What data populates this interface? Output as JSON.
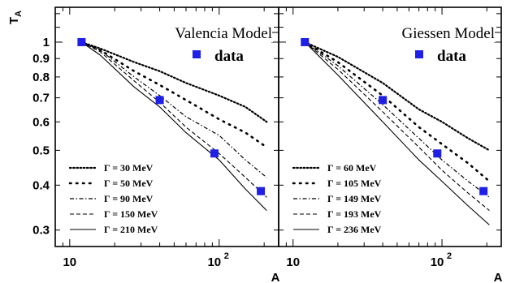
{
  "chart_data": [
    {
      "type": "line",
      "title": "Valencia Model",
      "xlabel": "A",
      "ylabel": "T_A",
      "x_scale": "log",
      "y_scale": "log",
      "xlim": [
        8,
        250
      ],
      "ylim": [
        0.27,
        1.25
      ],
      "x_ticks": [
        {
          "v": 10,
          "label": "10"
        },
        {
          "v": 100,
          "label": "10",
          "sup": "2"
        }
      ],
      "y_ticks": [
        {
          "v": 0.3,
          "label": "0.3"
        },
        {
          "v": 0.4,
          "label": "0.4"
        },
        {
          "v": 0.5,
          "label": "0.5"
        },
        {
          "v": 0.6,
          "label": "0.6"
        },
        {
          "v": 0.7,
          "label": "0.7"
        },
        {
          "v": 0.8,
          "label": "0.8"
        },
        {
          "v": 0.9,
          "label": "0.9"
        },
        {
          "v": 1,
          "label": "1"
        }
      ],
      "legend_data_label": "data",
      "series": [
        {
          "name": "Γ = 30 MeV",
          "style": "dotted-small",
          "points": [
            [
              12,
              1.0
            ],
            [
              16,
              0.96
            ],
            [
              27,
              0.88
            ],
            [
              40,
              0.83
            ],
            [
              60,
              0.77
            ],
            [
              100,
              0.71
            ],
            [
              150,
              0.66
            ],
            [
              208,
              0.6
            ]
          ]
        },
        {
          "name": "Γ = 50 MeV",
          "style": "dotted-large",
          "points": [
            [
              12,
              1.0
            ],
            [
              16,
              0.95
            ],
            [
              27,
              0.83
            ],
            [
              40,
              0.76
            ],
            [
              60,
              0.69
            ],
            [
              100,
              0.61
            ],
            [
              150,
              0.56
            ],
            [
              208,
              0.51
            ]
          ]
        },
        {
          "name": "Γ = 90 MeV",
          "style": "dashdot",
          "points": [
            [
              12,
              1.0
            ],
            [
              16,
              0.95
            ],
            [
              27,
              0.8
            ],
            [
              40,
              0.71
            ],
            [
              60,
              0.62
            ],
            [
              100,
              0.55
            ],
            [
              150,
              0.47
            ],
            [
              208,
              0.42
            ]
          ]
        },
        {
          "name": "Γ = 150 MeV",
          "style": "dashed",
          "points": [
            [
              12,
              1.0
            ],
            [
              16,
              0.94
            ],
            [
              27,
              0.78
            ],
            [
              40,
              0.68
            ],
            [
              60,
              0.58
            ],
            [
              100,
              0.49
            ],
            [
              150,
              0.42
            ],
            [
              208,
              0.37
            ]
          ]
        },
        {
          "name": "Γ = 210 MeV",
          "style": "solid",
          "points": [
            [
              12,
              1.0
            ],
            [
              16,
              0.92
            ],
            [
              27,
              0.75
            ],
            [
              40,
              0.66
            ],
            [
              60,
              0.56
            ],
            [
              100,
              0.47
            ],
            [
              150,
              0.39
            ],
            [
              208,
              0.34
            ]
          ]
        }
      ],
      "data": {
        "name": "data",
        "points": [
          [
            12,
            1.0
          ],
          [
            40,
            0.69
          ],
          [
            93,
            0.49
          ],
          [
            190,
            0.385
          ]
        ]
      }
    },
    {
      "type": "line",
      "title": "Giessen Model",
      "xlabel": "A",
      "ylabel": "",
      "x_scale": "log",
      "y_scale": "log",
      "xlim": [
        8,
        250
      ],
      "ylim": [
        0.27,
        1.25
      ],
      "x_ticks": [
        {
          "v": 10,
          "label": "10"
        },
        {
          "v": 100,
          "label": "10",
          "sup": "2"
        }
      ],
      "y_ticks": [],
      "legend_data_label": "data",
      "series": [
        {
          "name": "Γ = 60  MeV",
          "style": "dotted-small",
          "points": [
            [
              12,
              1.0
            ],
            [
              20,
              0.91
            ],
            [
              40,
              0.77
            ],
            [
              70,
              0.65
            ],
            [
              100,
              0.6
            ],
            [
              150,
              0.54
            ],
            [
              208,
              0.5
            ]
          ]
        },
        {
          "name": "Γ = 105 MeV",
          "style": "dotted-large",
          "points": [
            [
              12,
              1.0
            ],
            [
              20,
              0.88
            ],
            [
              40,
              0.71
            ],
            [
              70,
              0.58
            ],
            [
              100,
              0.52
            ],
            [
              150,
              0.46
            ],
            [
              208,
              0.41
            ]
          ]
        },
        {
          "name": "Γ = 149 MeV",
          "style": "dashdot",
          "points": [
            [
              12,
              1.0
            ],
            [
              20,
              0.86
            ],
            [
              40,
              0.67
            ],
            [
              70,
              0.54
            ],
            [
              100,
              0.47
            ],
            [
              150,
              0.41
            ],
            [
              208,
              0.37
            ]
          ]
        },
        {
          "name": "Γ = 193 MeV",
          "style": "dashed",
          "points": [
            [
              12,
              1.0
            ],
            [
              20,
              0.84
            ],
            [
              40,
              0.64
            ],
            [
              70,
              0.51
            ],
            [
              100,
              0.44
            ],
            [
              150,
              0.38
            ],
            [
              208,
              0.34
            ]
          ]
        },
        {
          "name": "Γ = 236 MeV",
          "style": "solid",
          "points": [
            [
              12,
              1.0
            ],
            [
              20,
              0.81
            ],
            [
              40,
              0.6
            ],
            [
              70,
              0.47
            ],
            [
              100,
              0.41
            ],
            [
              150,
              0.35
            ],
            [
              208,
              0.31
            ]
          ]
        }
      ],
      "data": {
        "name": "data",
        "points": [
          [
            12,
            1.0
          ],
          [
            40,
            0.69
          ],
          [
            93,
            0.49
          ],
          [
            190,
            0.385
          ]
        ]
      }
    }
  ]
}
